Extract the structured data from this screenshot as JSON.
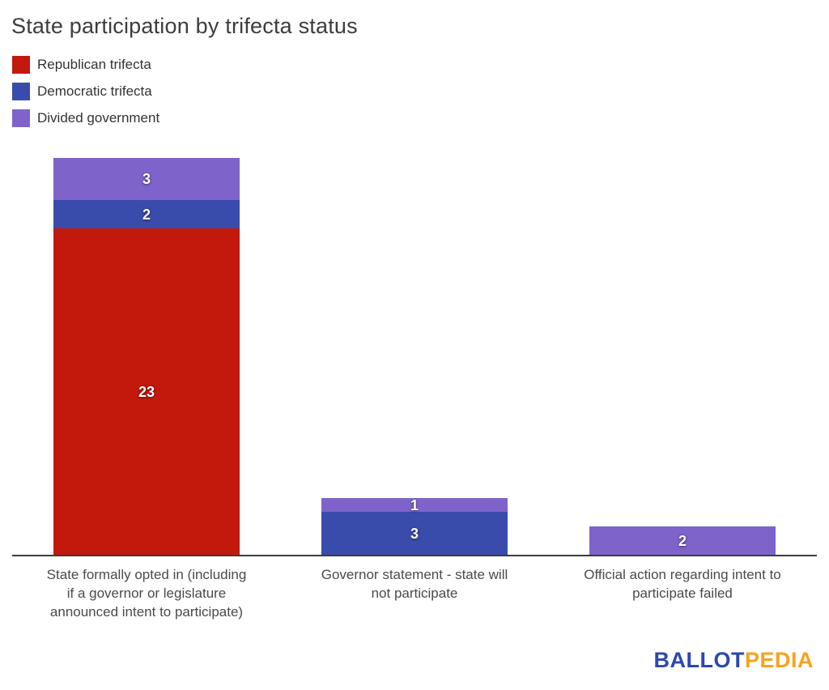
{
  "header": {
    "title": "State participation by trifecta status"
  },
  "legend": {
    "items": [
      {
        "label": "Republican trifecta",
        "color": "#c3190d"
      },
      {
        "label": "Democratic trifecta",
        "color": "#3a4cab"
      },
      {
        "label": "Divided government",
        "color": "#7e64ca"
      }
    ]
  },
  "chart_data": {
    "type": "bar",
    "stacked": true,
    "title": "State participation by trifecta status",
    "categories": [
      "State formally opted in (including if a governor or legislature announced intent to participate)",
      "Governor statement - state will not participate",
      "Official action regarding intent to participate failed"
    ],
    "category_label_lines": [
      [
        "State formally opted in (including",
        "if a governor or legislature",
        "announced intent to participate)"
      ],
      [
        "Governor statement - state will",
        "not participate"
      ],
      [
        "Official action regarding intent to",
        "participate failed"
      ]
    ],
    "series": [
      {
        "name": "Republican trifecta",
        "color": "#c3190d",
        "values": [
          23,
          0,
          0
        ]
      },
      {
        "name": "Democratic trifecta",
        "color": "#3a4cab",
        "values": [
          2,
          3,
          0
        ]
      },
      {
        "name": "Divided government",
        "color": "#7e64ca",
        "values": [
          3,
          1,
          2
        ]
      }
    ],
    "ylim": [
      0,
      28
    ],
    "grid": false,
    "legend_position": "top-left",
    "value_label_color": "#ffffff"
  },
  "colors": {
    "axis_line": "#3c3c3c",
    "title_text": "#3d3d3d",
    "axis_label_text": "#4a4a4a"
  },
  "footer": {
    "logo": {
      "text_primary": "BALLOT",
      "text_secondary": "PEDIA",
      "color_primary": "#2c47b2",
      "color_secondary": "#f5a31e"
    }
  }
}
